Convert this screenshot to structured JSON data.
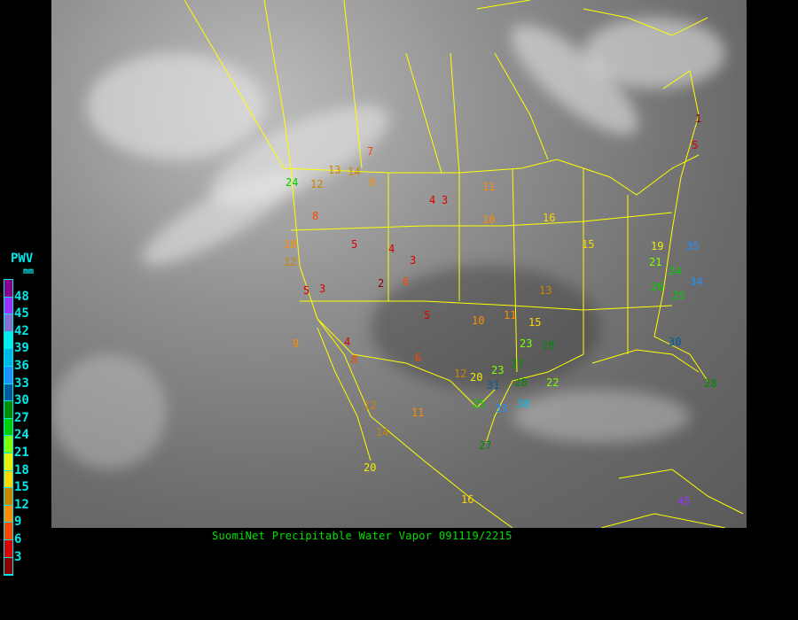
{
  "caption": "SuomiNet Precipitable Water Vapor 091119/2215",
  "legend": {
    "title": "PWV",
    "unit": "mm",
    "labels": [
      "48",
      "45",
      "42",
      "39",
      "36",
      "33",
      "30",
      "27",
      "24",
      "21",
      "18",
      "15",
      "12",
      "9",
      "6",
      "3"
    ],
    "colors": [
      "#8b008b",
      "#9b30ff",
      "#8470d0",
      "#00eeee",
      "#00b8e8",
      "#1e90ff",
      "#005a9c",
      "#008b00",
      "#00cd00",
      "#7fff00",
      "#eeee00",
      "#ffd700",
      "#cd8500",
      "#ff8c00",
      "#ff4500",
      "#dd0000",
      "#8b0000"
    ]
  },
  "map_colors": {
    "borders": "#ffff00",
    "background": "#000000"
  },
  "stations": [
    "24",
    "12",
    "13",
    "14",
    "9",
    "10",
    "8",
    "7",
    "4",
    "3",
    "5",
    "2",
    "4",
    "3",
    "11",
    "10",
    "12",
    "5",
    "6",
    "10",
    "8",
    "9",
    "3",
    "4",
    "5",
    "6",
    "12",
    "11",
    "13",
    "15",
    "16",
    "20",
    "23",
    "27",
    "28",
    "22",
    "25",
    "31",
    "33",
    "38",
    "27",
    "16",
    "11",
    "14",
    "12",
    "20",
    "19",
    "21",
    "24",
    "25",
    "26",
    "34",
    "1",
    "5",
    "15",
    "23",
    "29",
    "35",
    "45",
    "30",
    "28"
  ]
}
